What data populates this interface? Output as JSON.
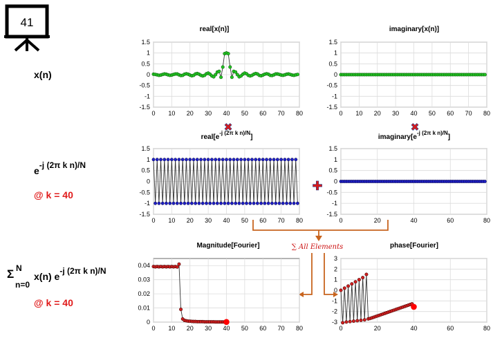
{
  "slide_number": "41",
  "left_labels": {
    "xn": "x(n)",
    "exp_base": "e",
    "exp_power": "-j (2π k n)/N",
    "at_k_1": "@ k = 40",
    "sum_sigma": "Σ",
    "sum_upper": "N",
    "sum_lower": "n=0",
    "sum_body": "x(n) e",
    "sum_power": "-j (2π k n)/N",
    "at_k_2": "@ k = 40"
  },
  "operators": {
    "times": "✖",
    "plus": "✚"
  },
  "annotation": {
    "sum_all": "∑ All Elements"
  },
  "colors": {
    "green_marker": "#22c522",
    "blue_marker": "#1f1fc8",
    "red_marker": "#d21f1f",
    "dark_red_marker": "#8b1010",
    "annotation_red": "#cc1111",
    "arrow_orange": "#c8641e",
    "grid": "#dcdcdc",
    "line": "#333333"
  },
  "chart_data": [
    {
      "id": "real_x",
      "type": "line",
      "title": "real[x(n)]",
      "xlim": [
        0,
        80
      ],
      "ylim": [
        -1.5,
        1.5
      ],
      "xticks": [
        "0",
        "10",
        "20",
        "30",
        "40",
        "50",
        "60",
        "70",
        "80"
      ],
      "yticks": [
        "1.5",
        "1",
        "0.5",
        "0",
        "-0.5",
        "-1",
        "-1.5"
      ],
      "x": [
        0,
        1,
        2,
        3,
        4,
        5,
        6,
        7,
        8,
        9,
        10,
        11,
        12,
        13,
        14,
        15,
        16,
        17,
        18,
        19,
        20,
        21,
        22,
        23,
        24,
        25,
        26,
        27,
        28,
        29,
        30,
        31,
        32,
        33,
        34,
        35,
        36,
        37,
        38,
        39,
        40,
        41,
        42,
        43,
        44,
        45,
        46,
        47,
        48,
        49,
        50,
        51,
        52,
        53,
        54,
        55,
        56,
        57,
        58,
        59,
        60,
        61,
        62,
        63,
        64,
        65,
        66,
        67,
        68,
        69,
        70,
        71,
        72,
        73,
        74,
        75,
        76,
        77,
        78,
        79
      ],
      "series": [
        {
          "values": [
            0.02,
            0.01,
            -0.01,
            -0.03,
            -0.02,
            0.01,
            0.03,
            0.02,
            -0.01,
            -0.03,
            -0.02,
            0.01,
            0.03,
            0.03,
            -0.01,
            -0.04,
            -0.03,
            0.02,
            0.04,
            0.02,
            -0.02,
            -0.05,
            -0.03,
            0.03,
            0.05,
            0.02,
            -0.03,
            -0.06,
            -0.03,
            0.04,
            0.07,
            0.02,
            -0.06,
            -0.1,
            0.0,
            0.12,
            0.15,
            -0.12,
            0.35,
            0.97,
            1.0,
            0.97,
            0.35,
            -0.12,
            0.15,
            0.12,
            0.0,
            -0.1,
            -0.06,
            0.02,
            0.07,
            0.04,
            -0.03,
            -0.06,
            -0.03,
            0.02,
            0.05,
            0.03,
            -0.03,
            -0.05,
            -0.02,
            0.02,
            0.04,
            0.02,
            -0.03,
            -0.04,
            -0.01,
            0.03,
            0.03,
            0.01,
            -0.02,
            -0.03,
            -0.01,
            0.02,
            0.03,
            0.01,
            -0.02,
            -0.03,
            -0.01,
            0.01
          ]
        }
      ]
    },
    {
      "id": "imag_x",
      "type": "line",
      "title": "imaginary[x(n)]",
      "xlim": [
        0,
        80
      ],
      "ylim": [
        -1.5,
        1.5
      ],
      "xticks": [
        "0",
        "10",
        "20",
        "30",
        "40",
        "50",
        "60",
        "70",
        "80"
      ],
      "yticks": [
        "1.5",
        "1",
        "0.5",
        "0",
        "-0.5",
        "-1",
        "-1.5"
      ],
      "x_range": [
        0,
        79
      ],
      "series": [
        {
          "constant": 0
        }
      ]
    },
    {
      "id": "real_exp",
      "type": "line",
      "title_base": "real[e",
      "title_sup": "-j (2π k n)/N",
      "title_end": "]",
      "xlim": [
        0,
        80
      ],
      "ylim": [
        -1.5,
        1.5
      ],
      "xticks": [
        "0",
        "10",
        "20",
        "30",
        "40",
        "50",
        "60",
        "70",
        "80"
      ],
      "yticks": [
        "1.5",
        "1",
        "0.5",
        "0",
        "-0.5",
        "-1",
        "-1.5"
      ],
      "x_range": [
        0,
        79
      ],
      "series": [
        {
          "formula": "cos(pi*n)",
          "pattern": [
            1,
            -1
          ]
        }
      ]
    },
    {
      "id": "imag_exp",
      "type": "line",
      "title_base": "imaginary[e",
      "title_sup": "-j (2π k n)/N",
      "title_end": "]",
      "xlim": [
        0,
        80
      ],
      "ylim": [
        -1.5,
        1.5
      ],
      "xticks": [
        "0",
        "20",
        "40",
        "60",
        "80"
      ],
      "yticks": [
        "1.5",
        "1",
        "0.5",
        "0",
        "-0.5",
        "-1",
        "-1.5"
      ],
      "x_range": [
        0,
        79
      ],
      "series": [
        {
          "constant": 0
        }
      ]
    },
    {
      "id": "magnitude",
      "type": "line",
      "title": "Magnitude[Fourier]",
      "xlim": [
        0,
        80
      ],
      "ylim": [
        0,
        0.045
      ],
      "xticks": [
        "0",
        "10",
        "20",
        "30",
        "40",
        "50",
        "60",
        "70",
        "80"
      ],
      "yticks": [
        "0.04",
        "0.03",
        "0.02",
        "0.01",
        "0"
      ],
      "x": [
        0,
        1,
        2,
        3,
        4,
        5,
        6,
        7,
        8,
        9,
        10,
        11,
        12,
        13,
        14,
        15,
        16,
        17,
        18,
        19,
        20,
        21,
        22,
        23,
        24,
        25,
        26,
        27,
        28,
        29,
        30,
        31,
        32,
        33,
        34,
        35,
        36,
        37,
        38,
        39,
        40
      ],
      "series": [
        {
          "values": [
            0.0393,
            0.0391,
            0.0393,
            0.0391,
            0.0393,
            0.0391,
            0.0393,
            0.0391,
            0.0393,
            0.0391,
            0.0393,
            0.0391,
            0.0393,
            0.039,
            0.041,
            0.009,
            0.0022,
            0.0012,
            0.0009,
            0.0007,
            0.0006,
            0.0005,
            0.0004,
            0.0004,
            0.0003,
            0.0003,
            0.0003,
            0.0003,
            0.0002,
            0.0002,
            0.0002,
            0.0002,
            0.0002,
            0.0002,
            0.0001,
            0.0001,
            0.0001,
            0.0001,
            0.0001,
            0.0001,
            0.0001
          ]
        }
      ],
      "highlight_last": true
    },
    {
      "id": "phase",
      "type": "line",
      "title": "phase[Fourier]",
      "xlim": [
        0,
        80
      ],
      "ylim": [
        -3,
        3
      ],
      "xticks": [
        "0",
        "20",
        "40",
        "60",
        "80"
      ],
      "yticks": [
        "3",
        "2",
        "1",
        "0",
        "-1",
        "-2",
        "-3"
      ],
      "x": [
        0,
        1,
        2,
        3,
        4,
        5,
        6,
        7,
        8,
        9,
        10,
        11,
        12,
        13,
        14,
        15,
        16,
        17,
        18,
        19,
        20,
        21,
        22,
        23,
        24,
        25,
        26,
        27,
        28,
        29,
        30,
        31,
        32,
        33,
        34,
        35,
        36,
        37,
        38,
        39,
        40
      ],
      "series": [
        {
          "values": [
            0.0,
            -3.06,
            0.2,
            -2.99,
            0.4,
            -2.95,
            0.6,
            -2.91,
            0.8,
            -2.87,
            1.0,
            -2.83,
            1.2,
            -2.79,
            1.5,
            -2.7,
            -2.66,
            -2.6,
            -2.54,
            -2.48,
            -2.42,
            -2.36,
            -2.3,
            -2.24,
            -2.18,
            -2.12,
            -2.06,
            -2.0,
            -1.94,
            -1.88,
            -1.82,
            -1.76,
            -1.7,
            -1.64,
            -1.58,
            -1.52,
            -1.46,
            -1.4,
            -1.34,
            -1.28,
            -1.56
          ]
        }
      ],
      "highlight_last": true
    }
  ]
}
